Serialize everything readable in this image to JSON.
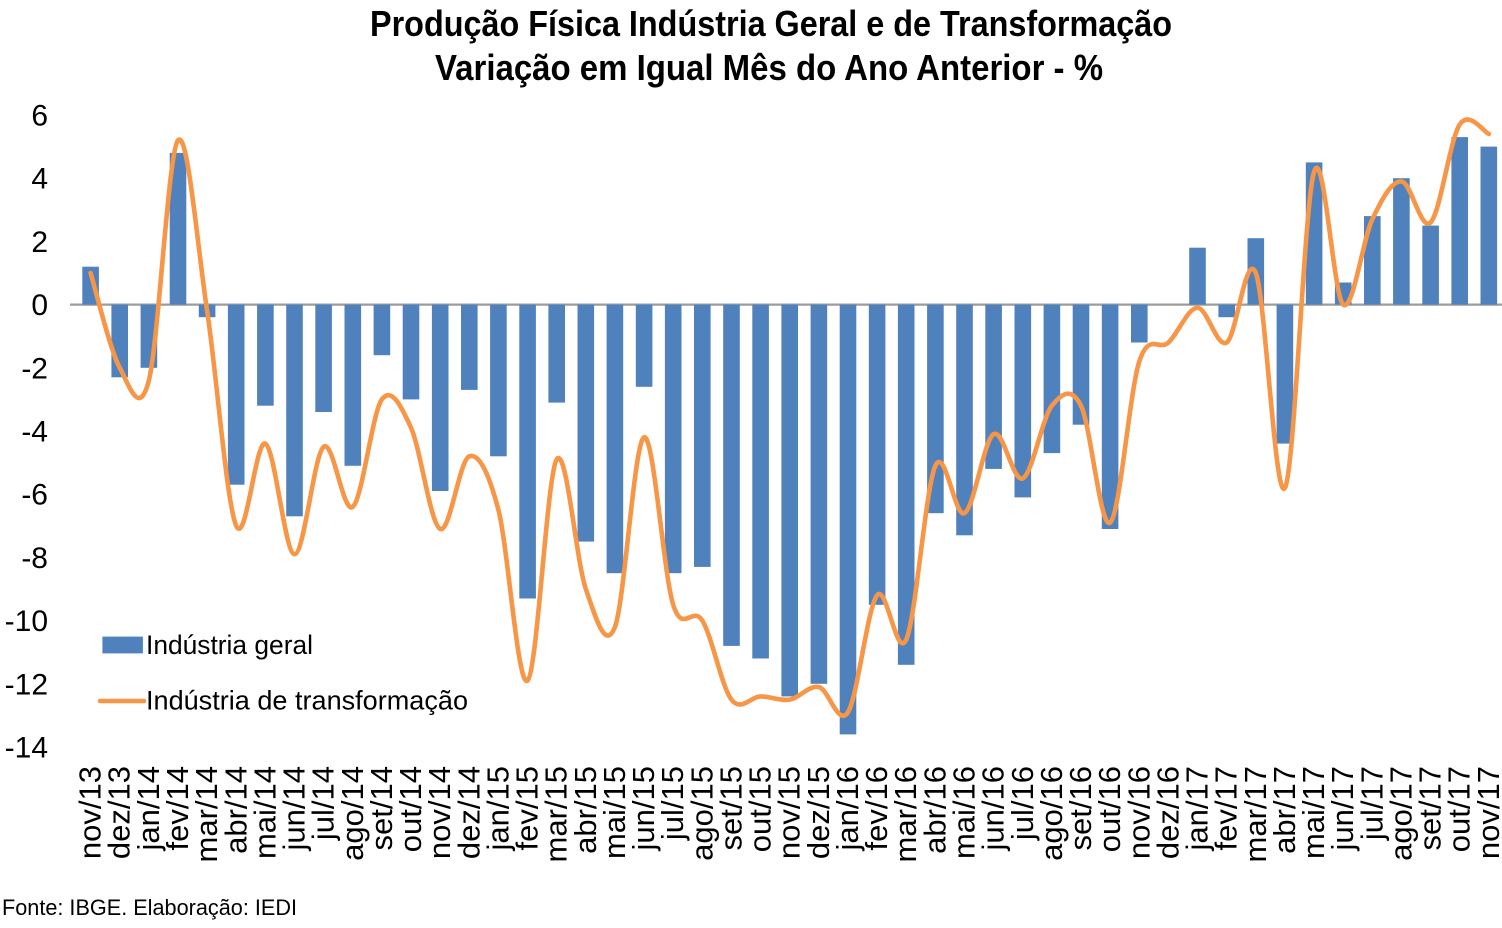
{
  "chart_data": {
    "type": "combo_bar_line",
    "title_line1": "Produção Física Indústria Geral e de Transformação",
    "title_line2": "Variação em Igual Mês do Ano Anterior - %",
    "source_note": "Fonte: IBGE. Elaboração: IEDI",
    "categories": [
      "nov/13",
      "dez/13",
      "jan/14",
      "fev/14",
      "mar/14",
      "abr/14",
      "mai/14",
      "jun/14",
      "jul/14",
      "ago/14",
      "set/14",
      "out/14",
      "nov/14",
      "dez/14",
      "jan/15",
      "fev/15",
      "mar/15",
      "abr/15",
      "mai/15",
      "jun/15",
      "jul/15",
      "ago/15",
      "set/15",
      "out/15",
      "nov/15",
      "dez/15",
      "jan/16",
      "fev/16",
      "mar/16",
      "abr/16",
      "mai/16",
      "jun/16",
      "jul/16",
      "ago/16",
      "set/16",
      "out/16",
      "nov/16",
      "dez/16",
      "jan/17",
      "fev/17",
      "mar/17",
      "abr/17",
      "mai/17",
      "jun/17",
      "jul/17",
      "ago/17",
      "set/17",
      "out/17",
      "nov/17"
    ],
    "series": [
      {
        "name": "Indústria geral",
        "type": "bar",
        "color": "#4F81BD",
        "values": [
          1.2,
          -2.3,
          -2.0,
          4.8,
          -0.4,
          -5.7,
          -3.2,
          -6.7,
          -3.4,
          -5.1,
          -1.6,
          -3.0,
          -5.9,
          -2.7,
          -4.8,
          -9.3,
          -3.1,
          -7.5,
          -8.5,
          -2.6,
          -8.5,
          -8.3,
          -10.8,
          -11.2,
          -12.4,
          -12.0,
          -13.6,
          -9.5,
          -11.4,
          -6.6,
          -7.3,
          -5.2,
          -6.1,
          -4.7,
          -3.8,
          -7.1,
          -1.2,
          0.0,
          1.8,
          -0.4,
          2.1,
          -4.4,
          4.5,
          0.7,
          2.8,
          4.0,
          2.5,
          5.3,
          5.0
        ]
      },
      {
        "name": "Indústria de transformação",
        "type": "line",
        "color": "#F79646",
        "values": [
          1.0,
          -2.0,
          -2.4,
          5.2,
          -0.2,
          -7.0,
          -4.4,
          -7.9,
          -4.5,
          -6.4,
          -3.0,
          -3.9,
          -7.1,
          -4.8,
          -6.5,
          -11.9,
          -4.9,
          -9.0,
          -10.2,
          -4.2,
          -9.5,
          -10.0,
          -12.5,
          -12.4,
          -12.5,
          -12.1,
          -12.9,
          -9.2,
          -10.6,
          -5.1,
          -6.6,
          -4.1,
          -5.5,
          -3.2,
          -3.2,
          -6.9,
          -1.8,
          -1.2,
          -0.1,
          -1.2,
          1.0,
          -5.8,
          4.2,
          0.0,
          2.7,
          3.9,
          2.6,
          5.7,
          5.4
        ]
      }
    ],
    "ylim": [
      -14,
      6
    ],
    "yticks": [
      6,
      4,
      2,
      0,
      -2,
      -4,
      -6,
      -8,
      -10,
      -12,
      -14
    ],
    "xlabel": "",
    "ylabel": "",
    "grid": "zero-line-only",
    "zero_line_color": "#9C9C9C",
    "legend_position": "inside-bottom-left",
    "line_smooth": true
  }
}
